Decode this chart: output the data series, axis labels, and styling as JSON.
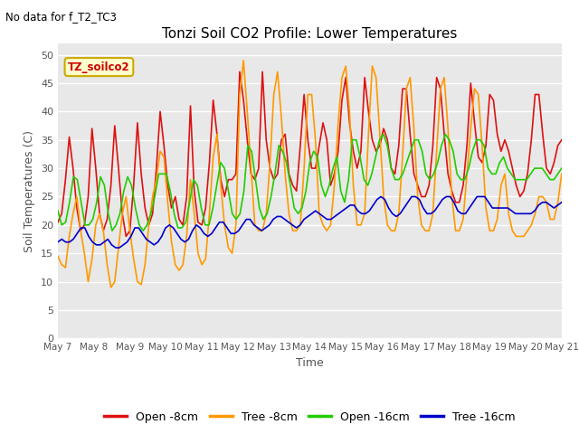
{
  "title": "Tonzi Soil CO2 Profile: Lower Temperatures",
  "subtitle": "No data for f_T2_TC3",
  "xlabel": "Time",
  "ylabel": "Soil Temperatures (C)",
  "legend_label": "TZ_soilco2",
  "ylim": [
    0,
    52
  ],
  "yticks": [
    0,
    5,
    10,
    15,
    20,
    25,
    30,
    35,
    40,
    45,
    50
  ],
  "xtick_labels": [
    "May 7",
    "May 8",
    "May 9",
    "May 10",
    "May 11",
    "May 12",
    "May 13",
    "May 14",
    "May 15",
    "May 16",
    "May 17",
    "May 18",
    "May 19",
    "May 20",
    "May 21"
  ],
  "colors": {
    "open_8cm": "#dd1111",
    "tree_8cm": "#ff9900",
    "open_16cm": "#22cc00",
    "tree_16cm": "#0000cc"
  },
  "series_labels": [
    "Open -8cm",
    "Tree -8cm",
    "Open -16cm",
    "Tree -16cm"
  ],
  "plot_bg": "#e8e8e8",
  "fig_bg": "#ffffff",
  "open_8cm": [
    20.5,
    22,
    28,
    35.5,
    30,
    23,
    19,
    20,
    25,
    37,
    30,
    22,
    19,
    21,
    27,
    37.5,
    30,
    22,
    18,
    19,
    27,
    38,
    29,
    23,
    20,
    22,
    30,
    40,
    34,
    27,
    23,
    25,
    21,
    20,
    25,
    41,
    26,
    20.5,
    20,
    23,
    31,
    42,
    36,
    28,
    25,
    28,
    28,
    29,
    47,
    42,
    35,
    29,
    28,
    30,
    47,
    35,
    30,
    28,
    29,
    35,
    36,
    29,
    27,
    26,
    34,
    43,
    35,
    30,
    30,
    34,
    38,
    35,
    27,
    29,
    33,
    42,
    46,
    38,
    33,
    30,
    33,
    46,
    40,
    35,
    33,
    34,
    37,
    35,
    30,
    29,
    34,
    44,
    44,
    36,
    29,
    27,
    25,
    25,
    27,
    34,
    46,
    44,
    36,
    29,
    26,
    24,
    24,
    27,
    34,
    45,
    38,
    32,
    31,
    34,
    43,
    42,
    36,
    33,
    35,
    33,
    30,
    27,
    25,
    26,
    29,
    35,
    43,
    43,
    36,
    30,
    29,
    31,
    34,
    35
  ],
  "tree_8cm": [
    14.5,
    13,
    12.5,
    18,
    22,
    25,
    19,
    15,
    10,
    14,
    20,
    22,
    19,
    13,
    9,
    10,
    16,
    22,
    25,
    19,
    14,
    10,
    9.5,
    13,
    20,
    25,
    28,
    33,
    32,
    24,
    17,
    13,
    12,
    13,
    18,
    28,
    22,
    15,
    13,
    14,
    22,
    32,
    36,
    27,
    20,
    16,
    15,
    20,
    43,
    49,
    40,
    30,
    20,
    19,
    19,
    22,
    31,
    43,
    47,
    39,
    29,
    22,
    19,
    19,
    20,
    30,
    43,
    43,
    35,
    22,
    20,
    19,
    20,
    27,
    38,
    46,
    48,
    40,
    27,
    20,
    20,
    22,
    36,
    48,
    46,
    36,
    25,
    20,
    19,
    19,
    22,
    32,
    44,
    46,
    37,
    25,
    20,
    19,
    19,
    22,
    33,
    44,
    46,
    37,
    25,
    19,
    19,
    21,
    29,
    37,
    44,
    43,
    34,
    23,
    19,
    19,
    21,
    27,
    29,
    22,
    19,
    18,
    18,
    18,
    19,
    20,
    22,
    25,
    25,
    24,
    21,
    21,
    24,
    29
  ],
  "open_16cm": [
    22.5,
    20,
    20.5,
    24,
    28.5,
    28,
    24,
    20,
    20,
    21,
    24,
    28.5,
    27,
    22,
    19,
    20,
    22,
    26,
    28.5,
    27,
    23,
    20,
    19,
    20,
    22,
    25,
    29,
    29,
    29,
    26,
    22,
    19.5,
    19.5,
    20.5,
    24,
    28,
    27,
    23,
    20,
    20,
    23,
    27,
    31,
    30,
    26,
    22,
    21,
    22,
    26,
    34,
    33,
    28,
    23,
    21,
    22,
    25,
    29,
    34,
    33,
    31,
    27,
    23,
    22,
    23,
    26,
    31,
    33,
    32,
    27,
    25,
    27,
    30,
    32,
    26,
    24,
    28,
    35,
    35,
    32,
    28,
    27,
    29,
    32,
    35,
    36,
    34,
    30,
    28,
    28,
    29,
    31,
    33,
    35,
    35,
    33,
    29,
    28,
    29,
    31,
    34,
    36,
    35,
    33,
    29,
    28,
    28,
    30,
    33,
    35,
    35,
    34,
    30,
    29,
    29,
    31,
    32,
    30,
    29,
    28,
    28,
    28,
    28,
    29,
    30,
    30,
    30,
    29,
    28,
    28,
    29,
    30
  ],
  "tree_16cm": [
    17,
    17.5,
    17,
    17,
    17.5,
    18.5,
    19.5,
    19.5,
    18,
    17,
    16.5,
    16.5,
    17,
    17.5,
    16.5,
    16,
    16,
    16.5,
    17,
    18,
    19.5,
    19.5,
    18.5,
    17.5,
    17,
    16.5,
    17,
    18,
    19.5,
    20,
    19.5,
    18.5,
    17.5,
    17,
    17.5,
    19,
    20,
    19.5,
    18.5,
    18,
    18.5,
    19.5,
    20.5,
    20.5,
    19.5,
    18.5,
    18.5,
    19,
    20,
    21,
    21,
    20,
    19.5,
    19,
    19.5,
    20,
    21,
    21.5,
    21.5,
    21,
    20.5,
    20,
    19.5,
    20,
    21,
    21.5,
    22,
    22.5,
    22,
    21.5,
    21,
    21,
    21.5,
    22,
    22.5,
    23,
    23.5,
    23.5,
    22.5,
    22,
    22,
    22.5,
    23.5,
    24.5,
    25,
    24.5,
    23,
    22,
    21.5,
    22,
    23,
    24,
    25,
    25,
    24.5,
    23,
    22,
    22,
    22.5,
    23.5,
    24.5,
    25,
    25,
    24,
    22.5,
    22,
    22,
    23,
    24,
    25,
    25,
    25,
    24,
    23,
    23,
    23,
    23,
    23,
    22.5,
    22,
    22,
    22,
    22,
    22,
    22.5,
    23.5,
    24,
    24,
    23.5,
    23,
    23.5,
    24
  ]
}
